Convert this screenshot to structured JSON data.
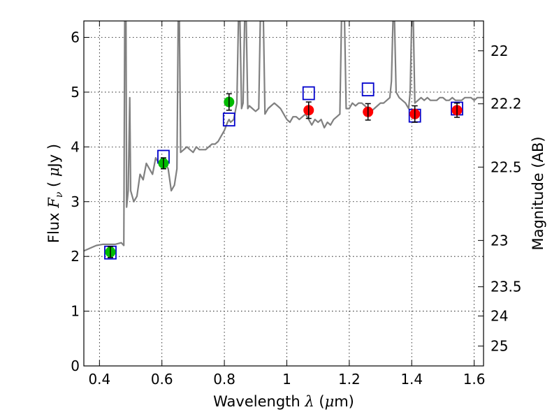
{
  "chart_data": {
    "type": "scatter",
    "xlabel": {
      "prefix": "Wavelength  ",
      "symbol": "λ",
      "suffix": " (",
      "unit_symbol": "μ",
      "unit_rest": "m)"
    },
    "ylabel": {
      "prefix": "Flux  ",
      "symbol": "F",
      "subscript": "ν",
      "paren_open": "  ( ",
      "unit_symbol": "μ",
      "unit_rest": "Jy )"
    },
    "y2label": "Magnitude (AB)",
    "xlim": [
      0.35,
      1.63
    ],
    "ylim": [
      0,
      6.3
    ],
    "xticks": [
      {
        "value": 0.4,
        "label": "0.4"
      },
      {
        "value": 0.6,
        "label": "0.6"
      },
      {
        "value": 0.8,
        "label": "0.8"
      },
      {
        "value": 1.0,
        "label": "1"
      },
      {
        "value": 1.2,
        "label": "1.2"
      },
      {
        "value": 1.4,
        "label": "1.4"
      },
      {
        "value": 1.6,
        "label": "1.6"
      }
    ],
    "yticks": [
      {
        "value": 0,
        "label": "0"
      },
      {
        "value": 1,
        "label": "1"
      },
      {
        "value": 2,
        "label": "2"
      },
      {
        "value": 3,
        "label": "3"
      },
      {
        "value": 4,
        "label": "4"
      },
      {
        "value": 5,
        "label": "5"
      },
      {
        "value": 6,
        "label": "6"
      }
    ],
    "y2ticks": [
      {
        "value": 22,
        "label": "22"
      },
      {
        "value": 22.2,
        "label": "22.2"
      },
      {
        "value": 22.5,
        "label": "22.5"
      },
      {
        "value": 23,
        "label": "23"
      },
      {
        "value": 23.5,
        "label": "23.5"
      },
      {
        "value": 24,
        "label": "24"
      },
      {
        "value": 25,
        "label": "25"
      }
    ],
    "grid": true,
    "spectrum": {
      "color": "#808080",
      "points": [
        [
          0.35,
          2.1
        ],
        [
          0.37,
          2.15
        ],
        [
          0.39,
          2.2
        ],
        [
          0.41,
          2.22
        ],
        [
          0.43,
          2.22
        ],
        [
          0.45,
          2.22
        ],
        [
          0.47,
          2.25
        ],
        [
          0.478,
          2.2
        ],
        [
          0.481,
          6.3
        ],
        [
          0.485,
          6.3
        ],
        [
          0.487,
          2.9
        ],
        [
          0.492,
          3.2
        ],
        [
          0.497,
          4.9
        ],
        [
          0.5,
          3.2
        ],
        [
          0.51,
          3.0
        ],
        [
          0.52,
          3.1
        ],
        [
          0.53,
          3.5
        ],
        [
          0.54,
          3.4
        ],
        [
          0.55,
          3.7
        ],
        [
          0.56,
          3.6
        ],
        [
          0.57,
          3.5
        ],
        [
          0.58,
          3.8
        ],
        [
          0.59,
          3.7
        ],
        [
          0.6,
          3.8
        ],
        [
          0.61,
          3.7
        ],
        [
          0.62,
          3.6
        ],
        [
          0.63,
          3.2
        ],
        [
          0.64,
          3.3
        ],
        [
          0.648,
          3.6
        ],
        [
          0.652,
          6.3
        ],
        [
          0.656,
          6.3
        ],
        [
          0.66,
          3.9
        ],
        [
          0.67,
          3.95
        ],
        [
          0.68,
          4.0
        ],
        [
          0.69,
          3.95
        ],
        [
          0.7,
          3.9
        ],
        [
          0.71,
          4.0
        ],
        [
          0.72,
          3.95
        ],
        [
          0.73,
          3.95
        ],
        [
          0.74,
          3.95
        ],
        [
          0.75,
          4.0
        ],
        [
          0.76,
          4.05
        ],
        [
          0.77,
          4.05
        ],
        [
          0.78,
          4.1
        ],
        [
          0.79,
          4.2
        ],
        [
          0.8,
          4.3
        ],
        [
          0.81,
          4.45
        ],
        [
          0.815,
          4.5
        ],
        [
          0.82,
          4.45
        ],
        [
          0.83,
          4.5
        ],
        [
          0.84,
          4.8
        ],
        [
          0.845,
          6.3
        ],
        [
          0.85,
          6.3
        ],
        [
          0.855,
          4.7
        ],
        [
          0.86,
          4.8
        ],
        [
          0.865,
          6.3
        ],
        [
          0.87,
          6.3
        ],
        [
          0.875,
          4.7
        ],
        [
          0.88,
          4.75
        ],
        [
          0.89,
          4.7
        ],
        [
          0.9,
          4.65
        ],
        [
          0.91,
          4.7
        ],
        [
          0.915,
          6.3
        ],
        [
          0.925,
          6.3
        ],
        [
          0.93,
          4.6
        ],
        [
          0.94,
          4.7
        ],
        [
          0.95,
          4.75
        ],
        [
          0.96,
          4.8
        ],
        [
          0.97,
          4.75
        ],
        [
          0.98,
          4.7
        ],
        [
          0.99,
          4.6
        ],
        [
          1.0,
          4.5
        ],
        [
          1.01,
          4.45
        ],
        [
          1.02,
          4.55
        ],
        [
          1.03,
          4.55
        ],
        [
          1.04,
          4.5
        ],
        [
          1.05,
          4.55
        ],
        [
          1.06,
          4.6
        ],
        [
          1.07,
          4.5
        ],
        [
          1.08,
          4.4
        ],
        [
          1.09,
          4.5
        ],
        [
          1.1,
          4.45
        ],
        [
          1.11,
          4.5
        ],
        [
          1.12,
          4.35
        ],
        [
          1.13,
          4.45
        ],
        [
          1.14,
          4.4
        ],
        [
          1.15,
          4.5
        ],
        [
          1.16,
          4.55
        ],
        [
          1.17,
          4.6
        ],
        [
          1.175,
          6.3
        ],
        [
          1.185,
          6.3
        ],
        [
          1.19,
          4.7
        ],
        [
          1.2,
          4.7
        ],
        [
          1.21,
          4.8
        ],
        [
          1.22,
          4.75
        ],
        [
          1.23,
          4.8
        ],
        [
          1.24,
          4.8
        ],
        [
          1.25,
          4.75
        ],
        [
          1.26,
          4.7
        ],
        [
          1.27,
          4.65
        ],
        [
          1.28,
          4.7
        ],
        [
          1.29,
          4.75
        ],
        [
          1.3,
          4.8
        ],
        [
          1.31,
          4.8
        ],
        [
          1.32,
          4.85
        ],
        [
          1.33,
          4.9
        ],
        [
          1.335,
          5.2
        ],
        [
          1.34,
          6.3
        ],
        [
          1.345,
          6.3
        ],
        [
          1.35,
          5.0
        ],
        [
          1.36,
          4.9
        ],
        [
          1.37,
          4.85
        ],
        [
          1.38,
          4.8
        ],
        [
          1.39,
          4.7
        ],
        [
          1.395,
          5.0
        ],
        [
          1.4,
          6.3
        ],
        [
          1.405,
          6.3
        ],
        [
          1.41,
          4.8
        ],
        [
          1.42,
          4.85
        ],
        [
          1.43,
          4.9
        ],
        [
          1.44,
          4.85
        ],
        [
          1.45,
          4.9
        ],
        [
          1.46,
          4.85
        ],
        [
          1.47,
          4.85
        ],
        [
          1.48,
          4.85
        ],
        [
          1.49,
          4.9
        ],
        [
          1.5,
          4.9
        ],
        [
          1.51,
          4.85
        ],
        [
          1.52,
          4.85
        ],
        [
          1.53,
          4.9
        ],
        [
          1.54,
          4.85
        ],
        [
          1.55,
          4.85
        ],
        [
          1.56,
          4.85
        ],
        [
          1.57,
          4.9
        ],
        [
          1.58,
          4.9
        ],
        [
          1.59,
          4.9
        ],
        [
          1.6,
          4.85
        ],
        [
          1.61,
          4.9
        ],
        [
          1.62,
          4.9
        ],
        [
          1.63,
          4.9
        ]
      ]
    },
    "series": [
      {
        "marker": "square",
        "color": "#0000cc",
        "points": [
          {
            "x": 0.435,
            "y": 2.07
          },
          {
            "x": 0.605,
            "y": 3.82
          },
          {
            "x": 0.815,
            "y": 4.5
          },
          {
            "x": 1.07,
            "y": 4.98
          },
          {
            "x": 1.26,
            "y": 5.05
          },
          {
            "x": 1.41,
            "y": 4.57
          },
          {
            "x": 1.545,
            "y": 4.7
          }
        ]
      },
      {
        "marker": "circle",
        "color": "#00bb00",
        "points": [
          {
            "x": 0.435,
            "y": 2.08,
            "err": 0.1
          },
          {
            "x": 0.605,
            "y": 3.7,
            "err": 0.1
          },
          {
            "x": 0.815,
            "y": 4.82,
            "err": 0.15
          }
        ]
      },
      {
        "marker": "circle",
        "color": "#ff0000",
        "points": [
          {
            "x": 1.07,
            "y": 4.67,
            "err": 0.15
          },
          {
            "x": 1.26,
            "y": 4.64,
            "err": 0.15
          },
          {
            "x": 1.41,
            "y": 4.6,
            "err": 0.15
          },
          {
            "x": 1.545,
            "y": 4.67,
            "err": 0.13
          }
        ]
      }
    ]
  }
}
